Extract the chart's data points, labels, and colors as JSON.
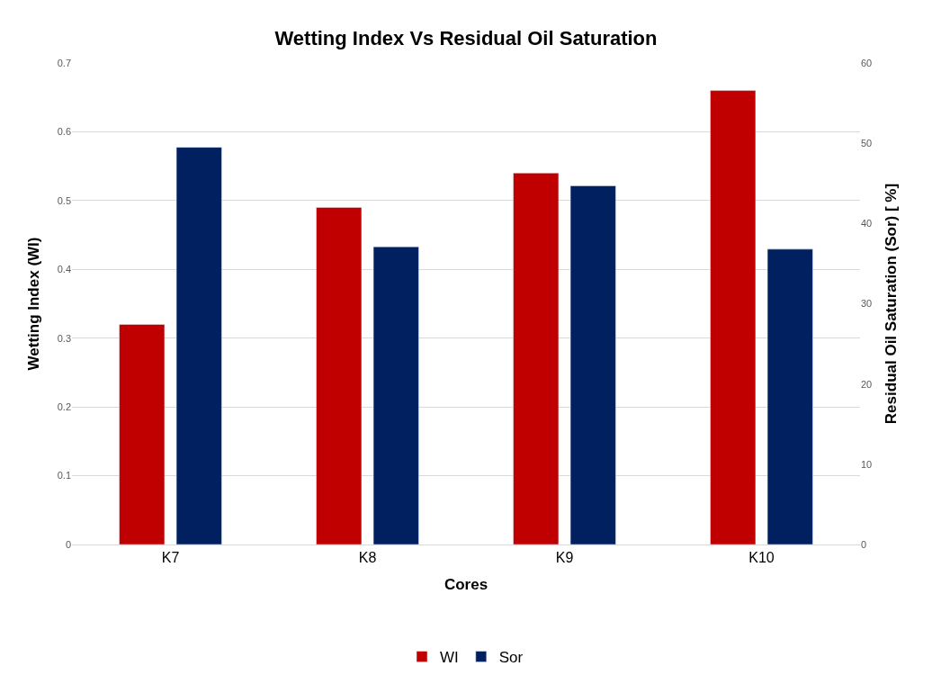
{
  "chart_data": {
    "type": "bar",
    "title": "Wetting Index Vs Residual Oil Saturation",
    "xlabel": "Cores",
    "ylabel": "Wetting Index (WI)",
    "y2label": "Residual Oil Saturation (Sor) [ %]",
    "categories": [
      "K7",
      "K8",
      "K9",
      "K10"
    ],
    "series": [
      {
        "name": "WI",
        "color": "#c00000",
        "values": [
          0.32,
          0.49,
          0.54,
          0.66
        ]
      },
      {
        "name": "Sor",
        "color": "#002060",
        "values": [
          49.5,
          37.1,
          44.7,
          36.8
        ],
        "axis": "y2"
      }
    ],
    "ylim": [
      0,
      0.7
    ],
    "yticks": [
      0,
      0.1,
      0.2,
      0.3,
      0.4,
      0.5,
      0.6,
      0.7
    ],
    "y2lim": [
      0,
      60
    ],
    "y2ticks": [
      0,
      10,
      20,
      30,
      40,
      50,
      60
    ],
    "grid": "y",
    "legend": "bottom"
  }
}
